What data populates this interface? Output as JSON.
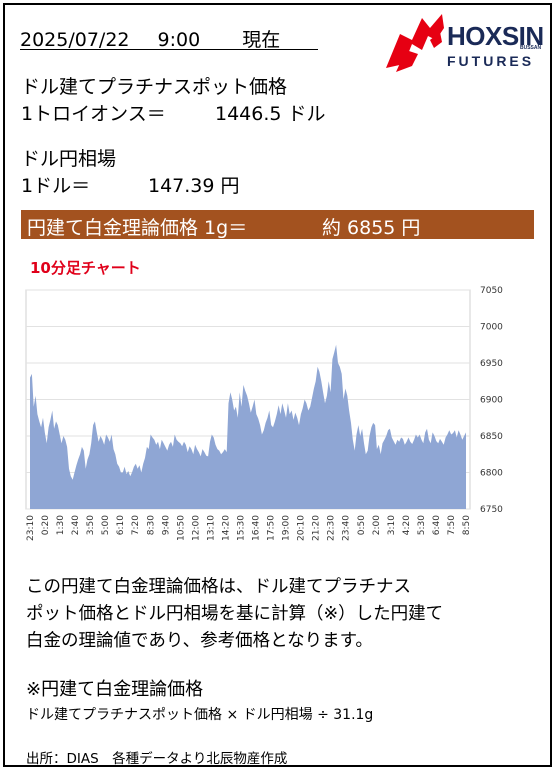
{
  "header": {
    "date": "2025/07/22",
    "time": "9:00",
    "status": "現在"
  },
  "logo": {
    "main": "HOXSIN",
    "small": "BUSSAN",
    "sub": "FUTURES",
    "accent_color": "#e60012",
    "brand_color": "#1a2a57"
  },
  "platinum": {
    "label": "ドル建てプラチナスポット価格",
    "unit_label": "1トロイオンス＝",
    "value": "1446.5 ドル"
  },
  "fx": {
    "label": "ドル円相場",
    "unit_label": "1ドル＝",
    "value": "147.39 円"
  },
  "banner": {
    "label": "円建て白金理論価格 1g＝",
    "value": "約 6855 円",
    "color": "#a3521f"
  },
  "chart_title": "10分足チャート",
  "chart_data": {
    "type": "area",
    "ylim": [
      6750,
      7050
    ],
    "yticks": [
      6750,
      6800,
      6850,
      6900,
      6950,
      7000,
      7050
    ],
    "x_tick_labels": [
      "23:10",
      "0:20",
      "1:30",
      "2:40",
      "3:50",
      "5:00",
      "6:10",
      "7:20",
      "8:30",
      "9:40",
      "10:50",
      "12:00",
      "13:10",
      "14:20",
      "15:30",
      "16:40",
      "17:50",
      "19:00",
      "20:10",
      "21:20",
      "22:30",
      "23:40",
      "0:50",
      "2:00",
      "3:10",
      "4:20",
      "5:30",
      "6:40",
      "7:50",
      "8:50"
    ],
    "fill_color": "#8fa6d4",
    "values": [
      6930,
      6935,
      6890,
      6905,
      6880,
      6870,
      6862,
      6875,
      6855,
      6840,
      6862,
      6872,
      6885,
      6860,
      6870,
      6865,
      6852,
      6840,
      6850,
      6845,
      6835,
      6805,
      6795,
      6790,
      6800,
      6810,
      6818,
      6825,
      6835,
      6830,
      6805,
      6818,
      6825,
      6840,
      6865,
      6870,
      6855,
      6842,
      6850,
      6845,
      6838,
      6852,
      6848,
      6842,
      6852,
      6832,
      6825,
      6812,
      6808,
      6800,
      6800,
      6808,
      6798,
      6802,
      6795,
      6800,
      6808,
      6812,
      6805,
      6810,
      6800,
      6812,
      6820,
      6835,
      6832,
      6852,
      6848,
      6845,
      6838,
      6842,
      6832,
      6845,
      6840,
      6835,
      6830,
      6838,
      6842,
      6835,
      6852,
      6845,
      6842,
      6840,
      6836,
      6842,
      6838,
      6828,
      6836,
      6832,
      6825,
      6838,
      6832,
      6828,
      6822,
      6832,
      6828,
      6823,
      6822,
      6842,
      6852,
      6848,
      6838,
      6832,
      6830,
      6825,
      6828,
      6832,
      6828,
      6895,
      6910,
      6900,
      6885,
      6890,
      6875,
      6910,
      6890,
      6920,
      6912,
      6905,
      6895,
      6882,
      6890,
      6900,
      6880,
      6874,
      6865,
      6852,
      6858,
      6868,
      6875,
      6885,
      6865,
      6862,
      6870,
      6880,
      6892,
      6880,
      6895,
      6885,
      6875,
      6895,
      6880,
      6885,
      6872,
      6882,
      6875,
      6865,
      6880,
      6888,
      6900,
      6895,
      6885,
      6890,
      6902,
      6915,
      6925,
      6945,
      6938,
      6925,
      6910,
      6895,
      6905,
      6925,
      6910,
      6955,
      6965,
      6975,
      6950,
      6945,
      6935,
      6900,
      6915,
      6905,
      6885,
      6868,
      6845,
      6830,
      6852,
      6865,
      6850,
      6860,
      6840,
      6825,
      6830,
      6850,
      6862,
      6868,
      6865,
      6832,
      6838,
      6825,
      6840,
      6845,
      6850,
      6858,
      6860,
      6848,
      6843,
      6838,
      6845,
      6842,
      6848,
      6846,
      6838,
      6842,
      6848,
      6842,
      6839,
      6845,
      6852,
      6848,
      6852,
      6845,
      6840,
      6855,
      6860,
      6845,
      6840,
      6855,
      6850,
      6843,
      6840,
      6846,
      6842,
      6838,
      6848,
      6852,
      6858,
      6852,
      6854,
      6858,
      6848,
      6858,
      6852,
      6845,
      6850,
      6855
    ]
  },
  "description": {
    "line1": "この円建て白金理論価格は、ドル建てプラチナス",
    "line2": "ポット価格とドル円相場を基に計算（※）した円建て",
    "line3": "白金の理論値であり、参考価格となります。"
  },
  "formula": {
    "title": "※円建て白金理論価格",
    "text": "ドル建てプラチナスポット価格 × ドル円相場 ÷ 31.1g"
  },
  "source": "出所：DIAS　各種データより北辰物産作成"
}
